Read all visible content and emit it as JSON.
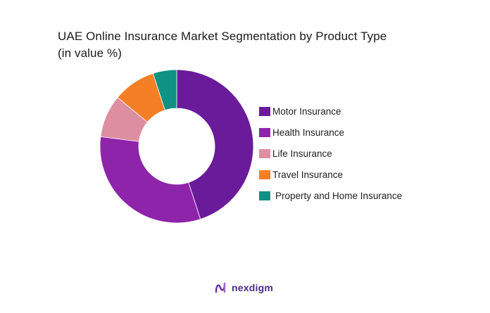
{
  "title_line1": "UAE Online Insurance Market Segmentation by Product Type",
  "title_line2": "(in value %)",
  "brand": {
    "name": "nexdigm",
    "icon": "nexdigm-logo-icon",
    "color": "#6a2c9a"
  },
  "chart_data": {
    "type": "donut",
    "title": "UAE Online Insurance Market Segmentation by Product Type (in value %)",
    "legend_position": "right",
    "series": [
      {
        "name": "Motor Insurance",
        "value": 45,
        "color": "#6a1b9a"
      },
      {
        "name": "Health Insurance",
        "value": 32,
        "color": "#8e24aa"
      },
      {
        "name": "Life Insurance",
        "value": 9,
        "color": "#de8ea1"
      },
      {
        "name": "Travel Insurance",
        "value": 9,
        "color": "#f57f25"
      },
      {
        "name": "Property and Home Insurance",
        "value": 5,
        "color": "#0f9184"
      }
    ]
  }
}
